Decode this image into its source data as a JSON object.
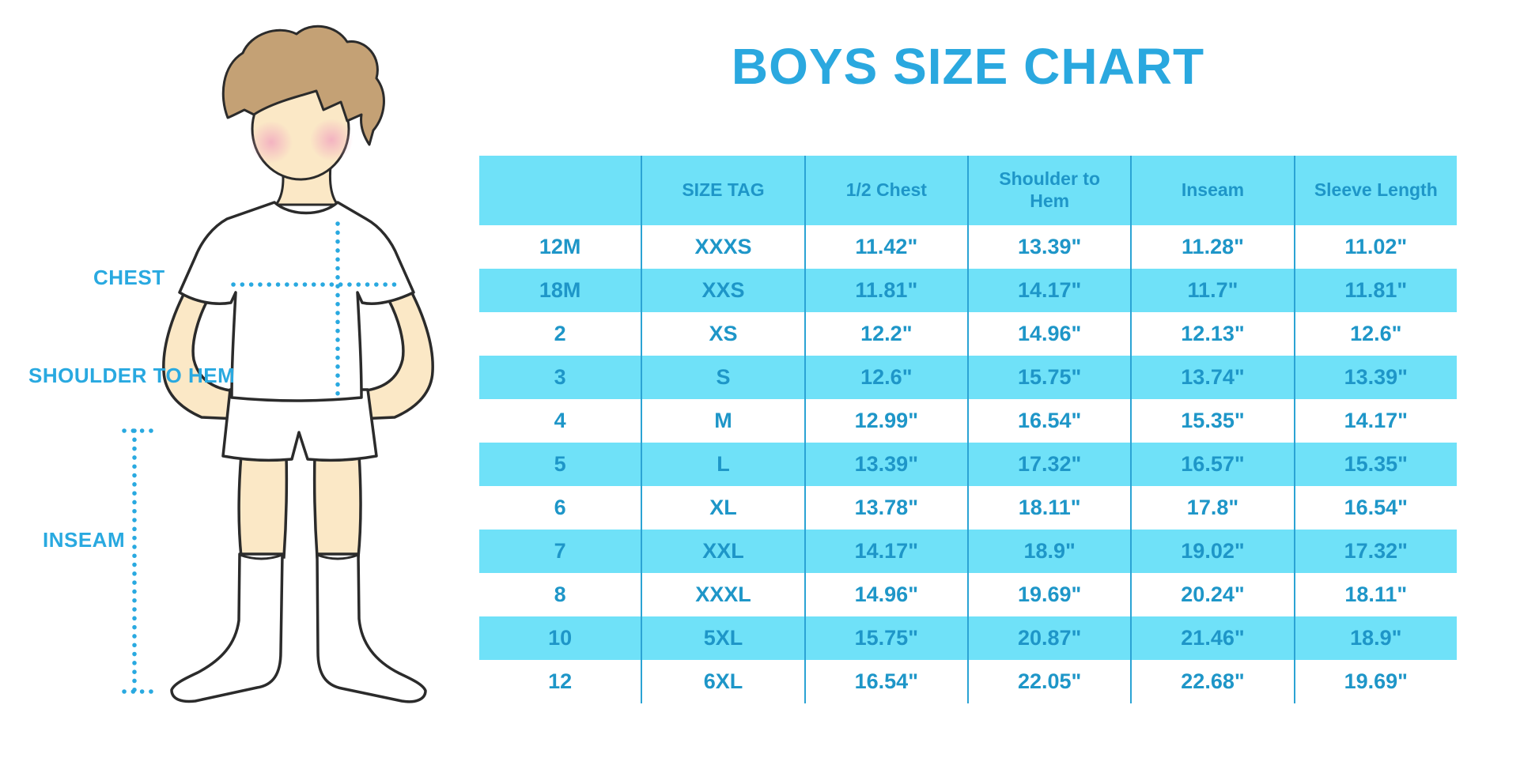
{
  "title": "BOYS SIZE CHART",
  "diagram": {
    "chest_label": "CHEST",
    "shoulder_to_hem_label": "SHOULDER TO HEM",
    "inseam_label": "INSEAM"
  },
  "size_table": {
    "columns": [
      "",
      "SIZE TAG",
      "1/2 Chest",
      "Shoulder to Hem",
      "Inseam",
      "Sleeve Length"
    ],
    "rows": [
      [
        "12M",
        "XXXS",
        "11.42\"",
        "13.39\"",
        "11.28\"",
        "11.02\""
      ],
      [
        "18M",
        "XXS",
        "11.81\"",
        "14.17\"",
        "11.7\"",
        "11.81\""
      ],
      [
        "2",
        "XS",
        "12.2\"",
        "14.96\"",
        "12.13\"",
        "12.6\""
      ],
      [
        "3",
        "S",
        "12.6\"",
        "15.75\"",
        "13.74\"",
        "13.39\""
      ],
      [
        "4",
        "M",
        "12.99\"",
        "16.54\"",
        "15.35\"",
        "14.17\""
      ],
      [
        "5",
        "L",
        "13.39\"",
        "17.32\"",
        "16.57\"",
        "15.35\""
      ],
      [
        "6",
        "XL",
        "13.78\"",
        "18.11\"",
        "17.8\"",
        "16.54\""
      ],
      [
        "7",
        "XXL",
        "14.17\"",
        "18.9\"",
        "19.02\"",
        "17.32\""
      ],
      [
        "8",
        "XXXL",
        "14.96\"",
        "19.69\"",
        "20.24\"",
        "18.11\""
      ],
      [
        "10",
        "5XL",
        "15.75\"",
        "20.87\"",
        "21.46\"",
        "18.9\""
      ],
      [
        "12",
        "6XL",
        "16.54\"",
        "22.05\"",
        "22.68\"",
        "19.69\""
      ]
    ]
  },
  "colors": {
    "accent_blue": "#29A9E0",
    "band_blue": "#6FE1F8",
    "divider_blue": "#2BA3D4",
    "text_blue": "#1E96C8",
    "skin": "#FBE8C6",
    "hair": "#C4A175",
    "blush": "#F2ADC0",
    "outline": "#2B2B2B"
  }
}
